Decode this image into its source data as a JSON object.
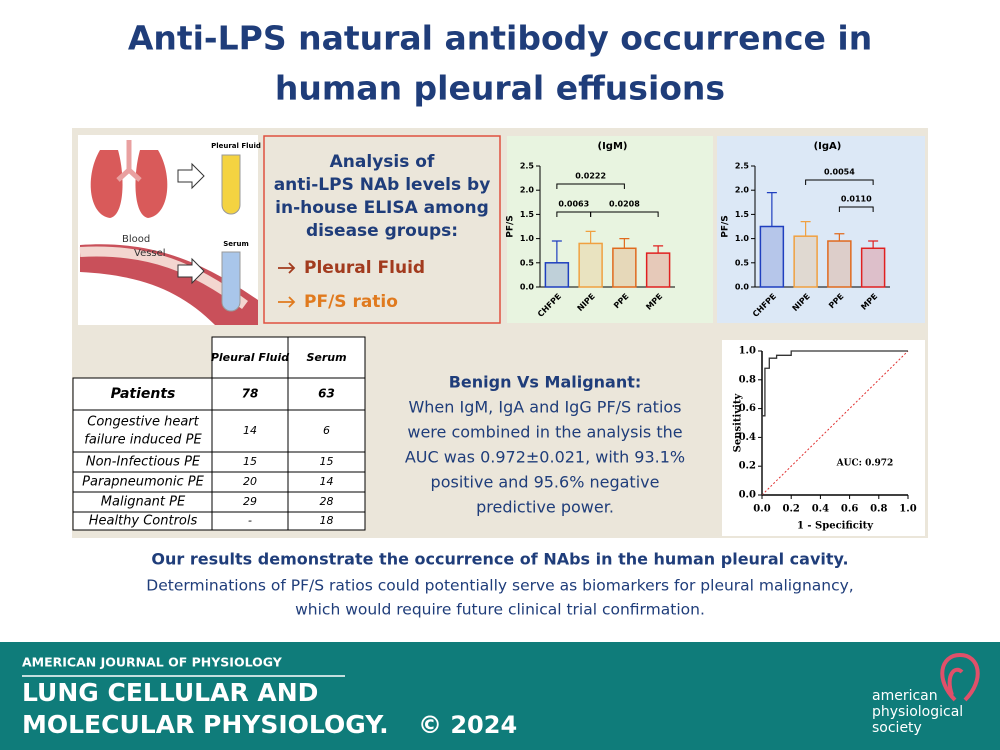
{
  "title": [
    "Anti-LPS natural antibody occurrence in",
    "human pleural effusions"
  ],
  "illustration": {
    "pleural_fluid": "Pleural Fluid",
    "blood_vessel": [
      "Blood",
      "Vessel"
    ],
    "serum": "Serum"
  },
  "analysis": {
    "heading": [
      "Analysis  of",
      "anti-LPS NAb levels by",
      "in-house ELISA among",
      "disease groups:"
    ],
    "items": [
      "Pleural Fluid",
      "PF/S ratio"
    ]
  },
  "charts": [
    {
      "type": "bar",
      "title": "(IgM)",
      "ylabel": "PF/S",
      "categories": [
        "CHFPE",
        "NIPE",
        "PPE",
        "MPE"
      ],
      "values": [
        0.5,
        0.9,
        0.8,
        0.7
      ],
      "errors": [
        0.45,
        0.25,
        0.2,
        0.15
      ],
      "colors": [
        "#1f3fbf",
        "#f0a040",
        "#e06a1e",
        "#e02020"
      ],
      "ylim": [
        0,
        2.5
      ],
      "yticks": [
        {
          "value": 0,
          "label": "0.0"
        },
        0.5,
        {
          "value": 1,
          "label": "1.0"
        },
        1.5,
        {
          "value": 2,
          "label": "2.0"
        },
        2.5
      ],
      "annotations": [
        "0.0222",
        "0.0063",
        "0.0208"
      ]
    },
    {
      "type": "bar",
      "title": "(IgA)",
      "ylabel": "PF/S",
      "categories": [
        "CHFPE",
        "NIPE",
        "PPE",
        "MPE"
      ],
      "values": [
        1.25,
        1.05,
        0.95,
        0.8
      ],
      "errors": [
        0.7,
        0.3,
        0.15,
        0.15
      ],
      "colors": [
        "#1f3fbf",
        "#f0a040",
        "#e06a1e",
        "#e02020"
      ],
      "ylim": [
        0,
        2.5
      ],
      "yticks": [
        {
          "value": 0,
          "label": "0.0"
        },
        0.5,
        {
          "value": 1,
          "label": "1.0"
        },
        1.5,
        {
          "value": 2,
          "label": "2.0"
        },
        2.5
      ],
      "annotations": [
        "0.0054",
        "0.0110"
      ]
    }
  ],
  "table": {
    "headers": [
      "Pleural Fluid",
      "Serum"
    ],
    "rows": [
      {
        "label": [
          "Patients"
        ],
        "values": [
          78,
          63
        ]
      },
      {
        "label": [
          "Congestive heart",
          "failure induced PE"
        ],
        "values": [
          14,
          6
        ]
      },
      {
        "label": [
          "Non-Infectious PE"
        ],
        "values": [
          15,
          15
        ]
      },
      {
        "label": [
          "Parapneumonic PE"
        ],
        "values": [
          20,
          14
        ]
      },
      {
        "label": [
          "Malignant PE"
        ],
        "values": [
          29,
          28
        ]
      },
      {
        "label": [
          "Healthy Controls"
        ],
        "values": [
          "-",
          18
        ]
      }
    ]
  },
  "summary": {
    "heading": "Benign Vs Malignant:",
    "lines": [
      "When IgM, IgA and IgG PF/S ratios",
      "were combined in the analysis the",
      "AUC was 0.972±0.021, with 93.1%",
      "positive and 95.6% negative",
      "predictive power."
    ]
  },
  "roc": {
    "type": "line",
    "xlabel": "1 - Specificity",
    "ylabel": "Sensitivity",
    "annotation": "AUC: 0.972",
    "x": [
      0,
      0,
      0.02,
      0.02,
      0.05,
      0.05,
      0.1,
      0.1,
      0.2,
      0.2,
      1
    ],
    "y": [
      0,
      0.55,
      0.55,
      0.88,
      0.88,
      0.95,
      0.95,
      0.97,
      0.97,
      1,
      1
    ],
    "xlim": [
      0,
      1
    ],
    "ylim": [
      0,
      1
    ],
    "xticks": [
      {
        "value": 0,
        "label": "0.0"
      },
      0.2,
      0.4,
      0.6,
      0.8,
      {
        "value": 1,
        "label": "1.0"
      }
    ],
    "yticks": [
      {
        "value": 0,
        "label": "0.0"
      },
      0.2,
      0.4,
      0.6,
      0.8,
      {
        "value": 1,
        "label": "1.0"
      }
    ]
  },
  "conclusion": {
    "bold": "Our results demonstrate the occurrence of NAbs in the human pleural cavity.",
    "lines": [
      "Determinations of PF/S ratios could potentially serve as biomarkers for pleural malignancy,",
      "which would require future clinical trial confirmation."
    ]
  },
  "footer": {
    "journal_top": "AMERICAN JOURNAL OF PHYSIOLOGY",
    "journal": [
      "LUNG CELLULAR AND",
      "MOLECULAR PHYSIOLOGY."
    ],
    "year": "© 2024",
    "society": [
      "american",
      "physiological",
      "society"
    ]
  }
}
